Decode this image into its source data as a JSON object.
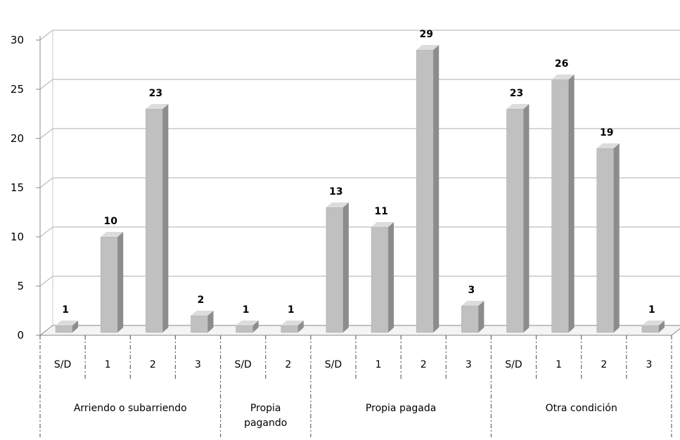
{
  "chart_data": {
    "type": "bar",
    "style": "3d-column",
    "title": "",
    "xlabel": "",
    "ylabel": "",
    "ylim": [
      0,
      30
    ],
    "yticks": [
      0,
      5,
      10,
      15,
      20,
      25,
      30
    ],
    "grid": true,
    "legend": "none",
    "colors": {
      "bar_front": "#c0c0c0",
      "bar_side": "#8c8c8c",
      "bar_top": "#dcdcdc",
      "grid": "#c8c8c8",
      "axis": "#888888"
    },
    "groups": [
      {
        "label": [
          "Arriendo o subarriendo"
        ],
        "categories": [
          "S/D",
          "1",
          "2",
          "3"
        ],
        "values": [
          1,
          10,
          23,
          2
        ]
      },
      {
        "label": [
          "Propia",
          "pagando"
        ],
        "categories": [
          "S/D",
          "2"
        ],
        "values": [
          1,
          1
        ]
      },
      {
        "label": [
          "Propia pagada"
        ],
        "categories": [
          "S/D",
          "1",
          "2",
          "3"
        ],
        "values": [
          13,
          11,
          29,
          3
        ]
      },
      {
        "label": [
          "Otra condición"
        ],
        "categories": [
          "S/D",
          "1",
          "2",
          "3"
        ],
        "values": [
          23,
          26,
          19,
          1
        ]
      }
    ]
  }
}
